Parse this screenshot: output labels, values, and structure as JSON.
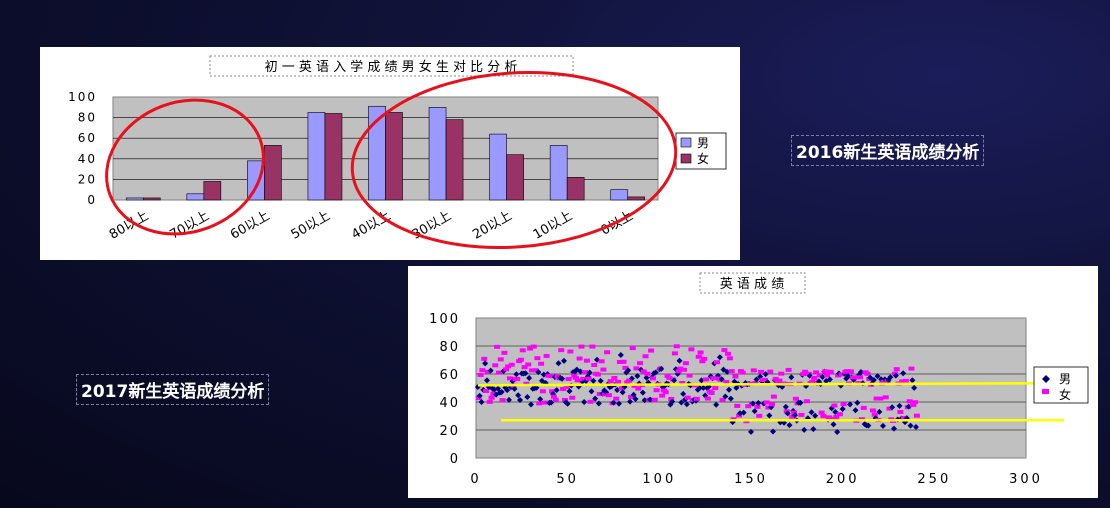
{
  "slide_labels": {
    "label_2016": "2016新生英语成绩分析",
    "label_2017": "2017新生英语成绩分析"
  },
  "colors": {
    "male_bar": "#9999ff",
    "female_bar": "#993366",
    "male_dot": "#000080",
    "female_dot": "#ff00ff",
    "plot_bg": "#c0c0c0",
    "circle": "#e8101a",
    "guide_line": "#ffff00"
  },
  "chart_data": [
    {
      "type": "bar",
      "title": "初 一 英 语 入 学 成 绩 男 女 生 对 比 分 析",
      "categories": [
        "80以上",
        "70以上",
        "60以上",
        "50以上",
        "40以上",
        "30以上",
        "20以上",
        "10以上",
        "0以上"
      ],
      "series": [
        {
          "name": "男",
          "values": [
            2,
            6,
            38,
            85,
            91,
            90,
            64,
            53,
            10
          ]
        },
        {
          "name": "女",
          "values": [
            2,
            18,
            53,
            84,
            85,
            78,
            44,
            22,
            3
          ]
        }
      ],
      "ylim": [
        0,
        100
      ],
      "yticks": [
        "0",
        "20",
        "40",
        "60",
        "80",
        "100"
      ],
      "grid": true,
      "legend_position": "right",
      "annotations": "two red ellipses circling the 80–60 and 40–0 groups"
    },
    {
      "type": "scatter",
      "title": "英 语 成 绩",
      "xlim": [
        0,
        300
      ],
      "ylim": [
        0,
        100
      ],
      "xticks": [
        "0",
        "50",
        "100",
        "150",
        "200",
        "250",
        "300"
      ],
      "yticks": [
        "0",
        "20",
        "40",
        "60",
        "80",
        "100"
      ],
      "grid": true,
      "legend_position": "right",
      "series": [
        {
          "name": "男",
          "marker": "diamond",
          "x_range": [
            1,
            240
          ],
          "approx_count": 240,
          "pattern": "x 1–140: y about 40–60 with spread to 85; x 140–240: two bands around 55 and 30, low points near 12–20"
        },
        {
          "name": "女",
          "marker": "square",
          "x_range": [
            1,
            240
          ],
          "approx_count": 240,
          "pattern": "x 1–140: y about 40–80; x 140–240: upper band around 58, lower band around 30–40"
        }
      ],
      "reference_lines": [
        {
          "y": 52,
          "color": "yellow"
        },
        {
          "y": 27,
          "color": "yellow"
        }
      ]
    }
  ]
}
